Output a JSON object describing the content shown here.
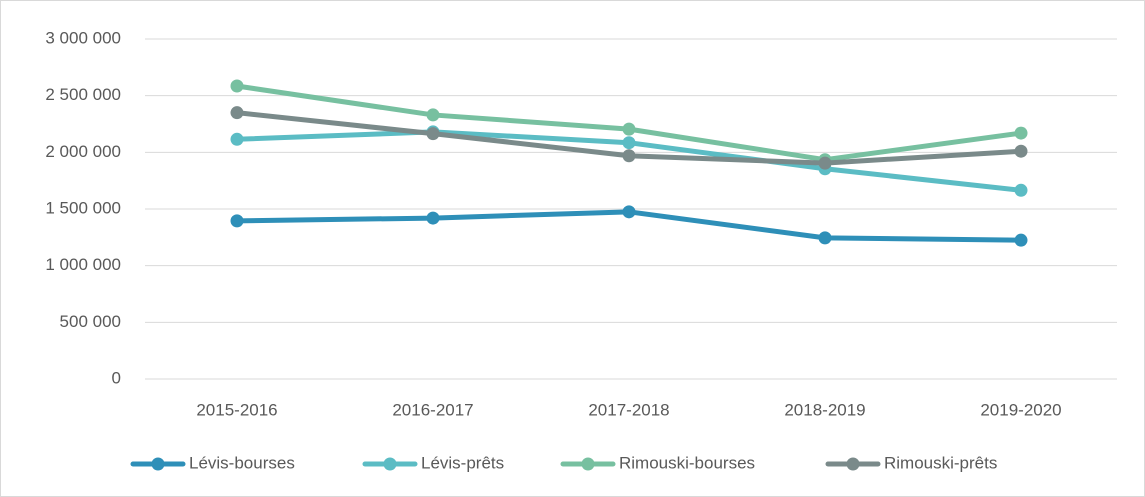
{
  "chart_data": {
    "type": "line",
    "categories": [
      "2015-2016",
      "2016-2017",
      "2017-2018",
      "2018-2019",
      "2019-2020"
    ],
    "series": [
      {
        "name": "Lévis-bourses",
        "color": "#2e8fb8",
        "values": [
          1395000,
          1420000,
          1475000,
          1245000,
          1225000
        ]
      },
      {
        "name": "Lévis-prêts",
        "color": "#5bbcc4",
        "values": [
          2115000,
          2180000,
          2085000,
          1855000,
          1665000
        ]
      },
      {
        "name": "Rimouski-bourses",
        "color": "#77c0a0",
        "values": [
          2585000,
          2330000,
          2205000,
          1935000,
          2170000
        ]
      },
      {
        "name": "Rimouski-prêts",
        "color": "#7a8a8a",
        "values": [
          2350000,
          2165000,
          1970000,
          1905000,
          2010000
        ]
      }
    ],
    "ylim": [
      0,
      3000000
    ],
    "yticks": [
      0,
      {
        "value": 500000,
        "label": "500 000"
      },
      {
        "value": 1000000,
        "label": "1 000 000"
      },
      {
        "value": 1500000,
        "label": "1 500 000"
      },
      {
        "value": 2000000,
        "label": "2 000 000"
      },
      {
        "value": 2500000,
        "label": "2 500 000"
      },
      {
        "value": 3000000,
        "label": "3 000 000"
      }
    ],
    "grid": true,
    "legend": "bottom"
  }
}
